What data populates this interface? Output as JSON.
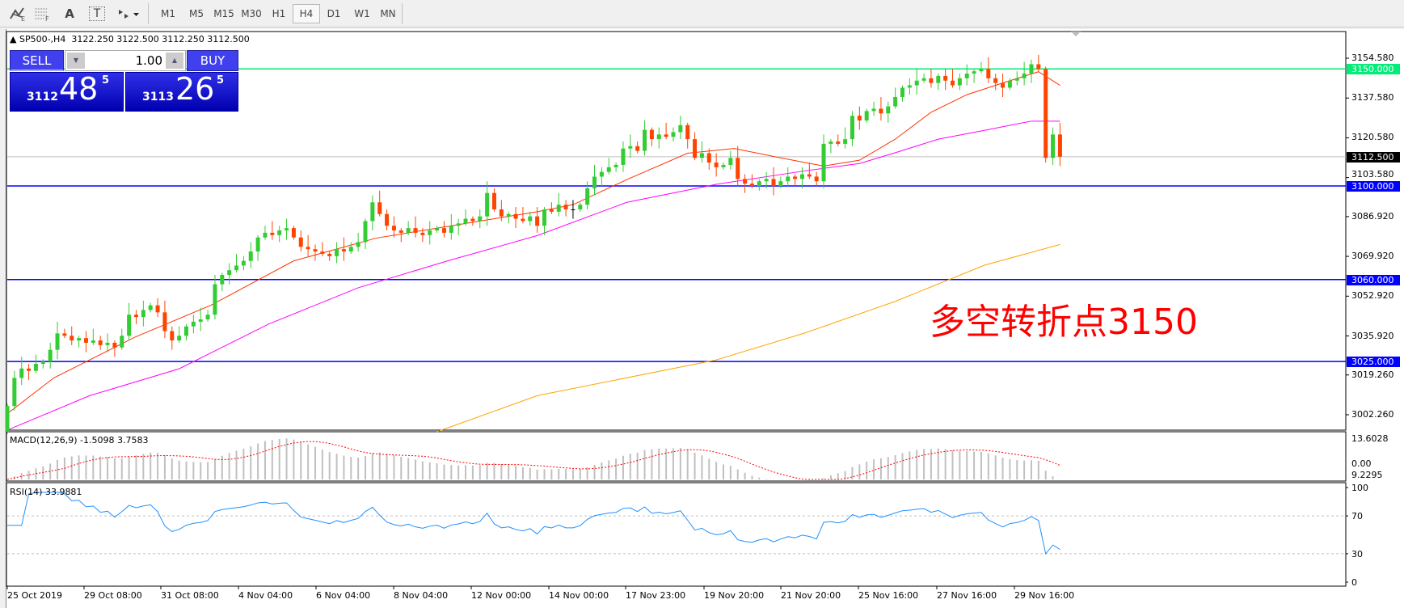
{
  "toolbar": {
    "tools": [
      {
        "icon": "elliott-wave-icon"
      },
      {
        "icon": "fibonacci-icon"
      },
      {
        "icon": "text-icon",
        "label": "A"
      },
      {
        "icon": "text-label-icon",
        "label": "T"
      },
      {
        "icon": "arrows-dropdown-icon"
      }
    ],
    "timeframes": [
      "M1",
      "M5",
      "M15",
      "M30",
      "H1",
      "H4",
      "D1",
      "W1",
      "MN"
    ],
    "active": "H4"
  },
  "header": {
    "symbol": "SP500-,H4",
    "ohlc": "3122.250 3122.500 3112.250 3112.500"
  },
  "trade": {
    "sell": "SELL",
    "buy": "BUY",
    "lot": "1.00",
    "bid_big": "3112",
    "bid_pips": "48",
    "bid_sup": "5",
    "ask_big": "3113",
    "ask_pips": "26",
    "ask_sup": "5"
  },
  "price_axis": {
    "ticks": [
      "3154.580",
      "3137.580",
      "3120.580",
      "3103.580",
      "3086.920",
      "3069.920",
      "3052.920",
      "3035.920",
      "3019.260",
      "3002.260"
    ],
    "levels": [
      {
        "value": 3150,
        "label": "3150.000",
        "color": "#00ee77"
      },
      {
        "value": 3100,
        "label": "3100.000",
        "color": "#0000ff"
      },
      {
        "value": 3060,
        "label": "3060.000",
        "color": "#0000ff"
      },
      {
        "value": 3025,
        "label": "3025.000",
        "color": "#0000ff"
      }
    ],
    "current": {
      "value": 3112.5,
      "label": "3112.500"
    }
  },
  "annotation": "多空转折点3150",
  "macd": {
    "label": "MACD(12,26,9) -1.5098 3.7583",
    "axis_top": "13.6028",
    "axis_zero": "0.00",
    "axis_bottom": "9.2295"
  },
  "rsi": {
    "label": "RSI(14) 33.9881",
    "axis": [
      "100",
      "70",
      "30",
      "0"
    ],
    "levels": [
      70,
      30
    ]
  },
  "time_axis": [
    "25 Oct 2019",
    "29 Oct 08:00",
    "31 Oct 08:00",
    "4 Nov 04:00",
    "6 Nov 04:00",
    "8 Nov 04:00",
    "12 Nov 00:00",
    "14 Nov 00:00",
    "17 Nov 23:00",
    "19 Nov 20:00",
    "21 Nov 20:00",
    "25 Nov 16:00",
    "27 Nov 16:00",
    "29 Nov 16:00"
  ],
  "chart_data": {
    "type": "candlestick",
    "symbol": "SP500-",
    "timeframe": "H4",
    "ylim": [
      2995,
      3160
    ],
    "colors": {
      "up": "#33cc33",
      "down": "#ff4400"
    },
    "close": [
      3006,
      3018,
      3022,
      3021,
      3024,
      3025,
      3030,
      3037,
      3036,
      3034,
      3035,
      3033,
      3034,
      3032,
      3033,
      3031,
      3036,
      3045,
      3044,
      3047,
      3049,
      3046,
      3038,
      3034,
      3036,
      3040,
      3042,
      3043,
      3045,
      3058,
      3062,
      3064,
      3066,
      3068,
      3072,
      3078,
      3080,
      3079,
      3081,
      3082,
      3078,
      3074,
      3073,
      3072,
      3071,
      3070,
      3073,
      3072,
      3074,
      3076,
      3085,
      3093,
      3088,
      3083,
      3081,
      3080,
      3082,
      3080,
      3079,
      3081,
      3082,
      3080,
      3083,
      3084,
      3086,
      3085,
      3087,
      3097,
      3090,
      3087,
      3088,
      3086,
      3085,
      3087,
      3083,
      3090,
      3089,
      3092,
      3090,
      3090,
      3092,
      3099,
      3104,
      3106,
      3108,
      3109,
      3116,
      3117,
      3115,
      3124,
      3120,
      3122,
      3121,
      3123,
      3126,
      3120,
      3112,
      3114,
      3110,
      3108,
      3109,
      3112,
      3103,
      3101,
      3100,
      3102,
      3103,
      3100,
      3102,
      3104,
      3103,
      3105,
      3104,
      3102,
      3118,
      3119,
      3118,
      3120,
      3130,
      3128,
      3132,
      3133,
      3131,
      3134,
      3138,
      3142,
      3143,
      3145,
      3146,
      3144,
      3147,
      3145,
      3143,
      3146,
      3148,
      3149,
      3150,
      3146,
      3144,
      3142,
      3145,
      3146,
      3148,
      3152,
      3150,
      3112,
      3122,
      3112.5
    ],
    "ma_lines": [
      {
        "color": "#ff3300",
        "points": [
          [
            0,
            3002.7
          ],
          [
            6.5,
            3018
          ],
          [
            17.75,
            3035.3
          ],
          [
            28.4,
            3049
          ],
          [
            40,
            3068
          ],
          [
            51.5,
            3077.7
          ],
          [
            64,
            3084
          ],
          [
            74,
            3089
          ],
          [
            79,
            3092
          ],
          [
            86.5,
            3102.7
          ],
          [
            95,
            3114
          ],
          [
            101.5,
            3116
          ],
          [
            108,
            3112
          ],
          [
            114,
            3108.5
          ],
          [
            119,
            3111
          ],
          [
            124,
            3120
          ],
          [
            129,
            3131.5
          ],
          [
            134,
            3139
          ],
          [
            139,
            3144
          ],
          [
            144,
            3148.8
          ],
          [
            147,
            3143
          ]
        ]
      },
      {
        "color": "#ff00ff",
        "points": [
          [
            0,
            2995.7
          ],
          [
            11.5,
            3010.4
          ],
          [
            24,
            3021.9
          ],
          [
            36.5,
            3041
          ],
          [
            49,
            3056.5
          ],
          [
            61.5,
            3068
          ],
          [
            74,
            3078.8
          ],
          [
            86.5,
            3093
          ],
          [
            99,
            3100.7
          ],
          [
            111.5,
            3106.5
          ],
          [
            119,
            3109.6
          ],
          [
            124,
            3114.2
          ],
          [
            130,
            3120
          ],
          [
            136.5,
            3123.8
          ],
          [
            143,
            3127.7
          ],
          [
            147,
            3127.7
          ]
        ]
      },
      {
        "color": "#ffa500",
        "points": [
          [
            60,
            2995
          ],
          [
            74,
            3010.4
          ],
          [
            99,
            3025.7
          ],
          [
            111.5,
            3037.3
          ],
          [
            124,
            3050.7
          ],
          [
            136.5,
            3066.2
          ],
          [
            147,
            3075
          ]
        ]
      }
    ]
  }
}
